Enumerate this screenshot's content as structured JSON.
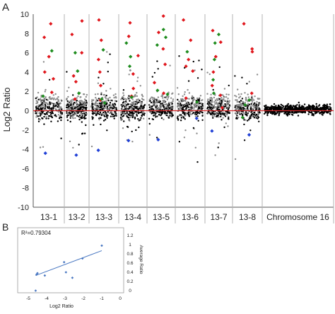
{
  "chart_data": [
    {
      "panel_label": "A",
      "type": "scatter",
      "ylabel": "Log2 Ratio",
      "ylim": [
        -10,
        10
      ],
      "yticks": [
        10,
        8,
        6,
        4,
        2,
        0,
        -2,
        -4,
        -6,
        -8,
        -10
      ],
      "categories": [
        "13-1",
        "13-2",
        "13-3",
        "13-4",
        "13-5",
        "13-6",
        "13-7",
        "13-8",
        "Chromosome 16"
      ],
      "reference_line": {
        "y": 0,
        "color": "#d62728"
      },
      "colors": {
        "background": "#000000",
        "gray": "#8c8c8c",
        "red": "#e0161c",
        "green": "#1e8c1e",
        "blue": "#1f3fd6",
        "grid": "#b3b3b3"
      },
      "highlight_series": [
        {
          "color": "red",
          "points": [
            [
              1,
              9.0
            ],
            [
              1,
              7.6
            ],
            [
              1,
              5.6
            ],
            [
              1,
              4.0
            ],
            [
              1,
              3.3
            ],
            [
              1,
              1.9
            ],
            [
              2,
              9.3
            ],
            [
              2,
              7.9
            ],
            [
              2,
              6.0
            ],
            [
              2,
              3.6
            ],
            [
              2,
              3.0
            ],
            [
              2,
              1.2
            ],
            [
              3,
              9.4
            ],
            [
              3,
              7.3
            ],
            [
              3,
              5.3
            ],
            [
              3,
              4.0
            ],
            [
              3,
              2.6
            ],
            [
              3,
              1.1
            ],
            [
              4,
              9.1
            ],
            [
              4,
              7.7
            ],
            [
              4,
              5.7
            ],
            [
              4,
              3.8
            ],
            [
              4,
              2.3
            ],
            [
              4,
              1.5
            ],
            [
              5,
              9.8
            ],
            [
              5,
              8.1
            ],
            [
              5,
              6.4
            ],
            [
              5,
              4.8
            ],
            [
              5,
              2.9
            ],
            [
              5,
              1.8
            ],
            [
              6,
              9.4
            ],
            [
              6,
              7.3
            ],
            [
              6,
              5.3
            ],
            [
              6,
              4.6
            ],
            [
              6,
              4.1
            ],
            [
              6,
              1.3
            ],
            [
              7,
              8.3
            ],
            [
              7,
              7.1
            ],
            [
              7,
              5.6
            ],
            [
              7,
              4.0
            ],
            [
              7,
              2.6
            ],
            [
              7,
              1.6
            ],
            [
              7,
              0.3
            ],
            [
              8,
              9.0
            ],
            [
              8,
              6.4
            ],
            [
              8,
              6.1
            ],
            [
              8,
              1.8
            ]
          ]
        },
        {
          "color": "green",
          "points": [
            [
              1,
              6.2
            ],
            [
              1,
              1.5
            ],
            [
              2,
              6.0
            ],
            [
              2,
              4.1
            ],
            [
              2,
              1.8
            ],
            [
              3,
              6.3
            ],
            [
              3,
              1.2
            ],
            [
              3,
              0.8
            ],
            [
              4,
              7.0
            ],
            [
              4,
              5.6
            ],
            [
              4,
              4.6
            ],
            [
              4,
              1.4
            ],
            [
              5,
              8.4
            ],
            [
              5,
              7.6
            ],
            [
              5,
              6.8
            ],
            [
              5,
              2.1
            ],
            [
              5,
              1.7
            ],
            [
              6,
              6.1
            ],
            [
              6,
              0.9
            ],
            [
              7,
              7.9
            ],
            [
              7,
              7.0
            ],
            [
              7,
              5.3
            ],
            [
              7,
              3.2
            ],
            [
              7,
              1.8
            ],
            [
              8,
              1.1
            ],
            [
              8,
              0.6
            ],
            [
              8,
              -0.7
            ]
          ]
        },
        {
          "color": "blue",
          "points": [
            [
              1,
              -4.4
            ],
            [
              2,
              -4.6
            ],
            [
              3,
              -4.1
            ],
            [
              4,
              -3.1
            ],
            [
              5,
              -3.0
            ],
            [
              6,
              -0.8
            ],
            [
              7,
              -2.1
            ],
            [
              8,
              -2.5
            ]
          ]
        }
      ]
    },
    {
      "panel_label": "B",
      "type": "scatter",
      "annotation": "R²=0.79304",
      "xlabel": "Log2 Ratio",
      "ylabel": "Average Ratio",
      "xlim": [
        -5,
        0
      ],
      "ylim": [
        0,
        1.2
      ],
      "xticks": [
        -5,
        -4,
        -3,
        -2,
        -1,
        0
      ],
      "yticks": [
        0,
        0.2,
        0.4,
        0.6,
        0.8,
        1,
        1.2
      ],
      "color": "#4a78c2",
      "points": [
        [
          -4.55,
          0.35
        ],
        [
          -4.5,
          0.38
        ],
        [
          -4.1,
          0.33
        ],
        [
          -3.05,
          0.62
        ],
        [
          -2.95,
          0.4
        ],
        [
          -2.6,
          0.28
        ],
        [
          -2.05,
          0.7
        ],
        [
          -1.0,
          0.98
        ],
        [
          -4.6,
          0.0
        ]
      ],
      "trendline": {
        "x": [
          -4.6,
          -1.0
        ],
        "y": [
          0.33,
          0.87
        ]
      }
    }
  ]
}
